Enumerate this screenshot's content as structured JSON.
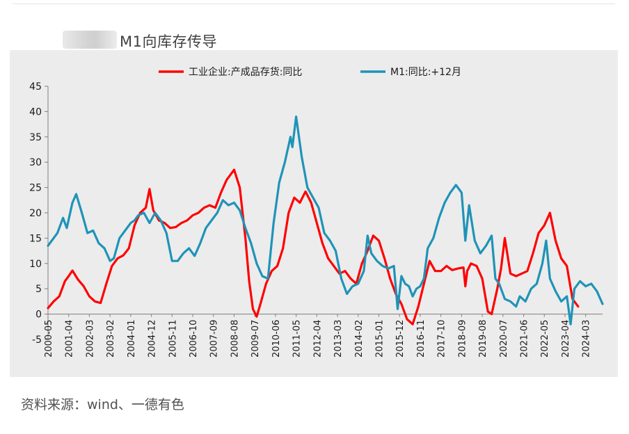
{
  "header": {
    "title": "M1向库存传导"
  },
  "footer": {
    "source": "资料来源：wind、一德有色"
  },
  "chart_data": {
    "type": "line",
    "title": "M1向库存传导",
    "ylim": [
      -5,
      45
    ],
    "yticks": [
      -5,
      0,
      5,
      10,
      15,
      20,
      25,
      30,
      35,
      40,
      45
    ],
    "x_tick_labels": [
      "2000-05",
      "2001-04",
      "2002-03",
      "2003-02",
      "2004-01",
      "2004-12",
      "2005-11",
      "2006-10",
      "2007-09",
      "2008-08",
      "2009-07",
      "2010-06",
      "2011-05",
      "2012-04",
      "2013-03",
      "2014-02",
      "2015-01",
      "2015-12",
      "2016-11",
      "2017-10",
      "2018-09",
      "2019-08",
      "2020-07",
      "2021-06",
      "2022-05",
      "2023-04",
      "2024-03"
    ],
    "legend_position": "top-center",
    "series": [
      {
        "name": "工业企业:产成品存货:同比",
        "color": "#ff0000",
        "points": [
          [
            "2000-05",
            1.2
          ],
          [
            "2000-08",
            2.5
          ],
          [
            "2000-11",
            3.5
          ],
          [
            "2001-02",
            6.5
          ],
          [
            "2001-04",
            7.5
          ],
          [
            "2001-06",
            8.6
          ],
          [
            "2001-09",
            6.8
          ],
          [
            "2001-12",
            5.5
          ],
          [
            "2002-03",
            3.5
          ],
          [
            "2002-06",
            2.5
          ],
          [
            "2002-09",
            2.2
          ],
          [
            "2002-12",
            6
          ],
          [
            "2003-03",
            9.5
          ],
          [
            "2003-06",
            11
          ],
          [
            "2003-09",
            11.6
          ],
          [
            "2003-12",
            13
          ],
          [
            "2004-03",
            17.5
          ],
          [
            "2004-06",
            20
          ],
          [
            "2004-09",
            21
          ],
          [
            "2004-11",
            24.7
          ],
          [
            "2005-01",
            20.5
          ],
          [
            "2005-04",
            18.5
          ],
          [
            "2005-07",
            18
          ],
          [
            "2005-10",
            17
          ],
          [
            "2006-01",
            17.2
          ],
          [
            "2006-04",
            18
          ],
          [
            "2006-07",
            18.5
          ],
          [
            "2006-10",
            19.5
          ],
          [
            "2007-01",
            20
          ],
          [
            "2007-04",
            21
          ],
          [
            "2007-07",
            21.5
          ],
          [
            "2007-10",
            21
          ],
          [
            "2008-01",
            24
          ],
          [
            "2008-04",
            26.5
          ],
          [
            "2008-08",
            28.5
          ],
          [
            "2008-11",
            25
          ],
          [
            "2009-02",
            15
          ],
          [
            "2009-04",
            6.5
          ],
          [
            "2009-06",
            1
          ],
          [
            "2009-08",
            -0.5
          ],
          [
            "2009-10",
            2
          ],
          [
            "2010-01",
            6
          ],
          [
            "2010-04",
            8.5
          ],
          [
            "2010-07",
            9.5
          ],
          [
            "2010-10",
            13
          ],
          [
            "2011-01",
            20
          ],
          [
            "2011-04",
            23
          ],
          [
            "2011-07",
            22
          ],
          [
            "2011-10",
            24.2
          ],
          [
            "2012-01",
            22
          ],
          [
            "2012-04",
            18
          ],
          [
            "2012-07",
            14
          ],
          [
            "2012-10",
            11
          ],
          [
            "2013-01",
            9.5
          ],
          [
            "2013-04",
            8
          ],
          [
            "2013-07",
            8.5
          ],
          [
            "2013-10",
            7
          ],
          [
            "2014-01",
            6
          ],
          [
            "2014-04",
            10
          ],
          [
            "2014-07",
            12.5
          ],
          [
            "2014-10",
            15.5
          ],
          [
            "2015-01",
            14.5
          ],
          [
            "2015-04",
            11
          ],
          [
            "2015-07",
            7
          ],
          [
            "2015-10",
            4
          ],
          [
            "2016-01",
            2
          ],
          [
            "2016-04",
            -1
          ],
          [
            "2016-07",
            -2
          ],
          [
            "2016-10",
            1.5
          ],
          [
            "2017-01",
            6
          ],
          [
            "2017-04",
            10.5
          ],
          [
            "2017-07",
            8.5
          ],
          [
            "2017-10",
            8.5
          ],
          [
            "2018-01",
            9.5
          ],
          [
            "2018-04",
            8.7
          ],
          [
            "2018-07",
            9
          ],
          [
            "2018-10",
            9.2
          ],
          [
            "2018-11",
            5.5
          ],
          [
            "2018-12",
            8.5
          ],
          [
            "2019-02",
            10
          ],
          [
            "2019-05",
            9.5
          ],
          [
            "2019-08",
            7
          ],
          [
            "2019-11",
            0.5
          ],
          [
            "2020-01",
            0
          ],
          [
            "2020-04",
            5
          ],
          [
            "2020-06",
            9
          ],
          [
            "2020-08",
            15
          ],
          [
            "2020-11",
            8
          ],
          [
            "2021-02",
            7.5
          ],
          [
            "2021-05",
            8
          ],
          [
            "2021-08",
            8.5
          ],
          [
            "2021-11",
            12
          ],
          [
            "2022-02",
            16
          ],
          [
            "2022-05",
            17.5
          ],
          [
            "2022-08",
            20
          ],
          [
            "2022-11",
            14.5
          ],
          [
            "2023-02",
            11
          ],
          [
            "2023-05",
            9.5
          ],
          [
            "2023-08",
            3
          ],
          [
            "2023-11",
            1.5
          ]
        ]
      },
      {
        "name": "M1:同比:+12月",
        "color": "#1f93b8",
        "points": [
          [
            "2000-05",
            13.5
          ],
          [
            "2000-07",
            14.5
          ],
          [
            "2000-10",
            16
          ],
          [
            "2001-01",
            19
          ],
          [
            "2001-03",
            17
          ],
          [
            "2001-06",
            22
          ],
          [
            "2001-08",
            23.7
          ],
          [
            "2001-11",
            20
          ],
          [
            "2002-02",
            16
          ],
          [
            "2002-05",
            16.5
          ],
          [
            "2002-08",
            14
          ],
          [
            "2002-11",
            13
          ],
          [
            "2003-02",
            10.5
          ],
          [
            "2003-04",
            11
          ],
          [
            "2003-07",
            15
          ],
          [
            "2003-10",
            16.5
          ],
          [
            "2004-01",
            18
          ],
          [
            "2004-03",
            18.5
          ],
          [
            "2004-05",
            19.5
          ],
          [
            "2004-08",
            20
          ],
          [
            "2004-11",
            18
          ],
          [
            "2005-02",
            20
          ],
          [
            "2005-05",
            18.5
          ],
          [
            "2005-08",
            16
          ],
          [
            "2005-11",
            10.5
          ],
          [
            "2006-02",
            10.5
          ],
          [
            "2006-05",
            12
          ],
          [
            "2006-08",
            13
          ],
          [
            "2006-11",
            11.5
          ],
          [
            "2007-02",
            14
          ],
          [
            "2007-05",
            17
          ],
          [
            "2007-08",
            18.5
          ],
          [
            "2007-11",
            20
          ],
          [
            "2008-02",
            22.5
          ],
          [
            "2008-05",
            21.5
          ],
          [
            "2008-08",
            22
          ],
          [
            "2008-11",
            20.5
          ],
          [
            "2009-02",
            17
          ],
          [
            "2009-05",
            14
          ],
          [
            "2009-08",
            10
          ],
          [
            "2009-11",
            7.5
          ],
          [
            "2010-02",
            7
          ],
          [
            "2010-05",
            18
          ],
          [
            "2010-08",
            26
          ],
          [
            "2010-11",
            30
          ],
          [
            "2011-02",
            35
          ],
          [
            "2011-03",
            33
          ],
          [
            "2011-05",
            39
          ],
          [
            "2011-08",
            31
          ],
          [
            "2011-11",
            25
          ],
          [
            "2012-02",
            23
          ],
          [
            "2012-05",
            21
          ],
          [
            "2012-08",
            16
          ],
          [
            "2012-11",
            14.5
          ],
          [
            "2013-02",
            12.5
          ],
          [
            "2013-05",
            7
          ],
          [
            "2013-08",
            4
          ],
          [
            "2013-11",
            5.5
          ],
          [
            "2014-02",
            6
          ],
          [
            "2014-05",
            8.5
          ],
          [
            "2014-07",
            15.5
          ],
          [
            "2014-09",
            12
          ],
          [
            "2014-12",
            10.5
          ],
          [
            "2015-03",
            9.5
          ],
          [
            "2015-06",
            9
          ],
          [
            "2015-09",
            9.5
          ],
          [
            "2015-11",
            1
          ],
          [
            "2016-01",
            7.5
          ],
          [
            "2016-03",
            6
          ],
          [
            "2016-05",
            5.5
          ],
          [
            "2016-07",
            3.5
          ],
          [
            "2016-09",
            5
          ],
          [
            "2016-11",
            5.5
          ],
          [
            "2017-01",
            7
          ],
          [
            "2017-03",
            13
          ],
          [
            "2017-06",
            15
          ],
          [
            "2017-09",
            19
          ],
          [
            "2017-12",
            22
          ],
          [
            "2018-03",
            24
          ],
          [
            "2018-06",
            25.5
          ],
          [
            "2018-09",
            24
          ],
          [
            "2018-11",
            14.5
          ],
          [
            "2019-01",
            21.5
          ],
          [
            "2019-04",
            14.5
          ],
          [
            "2019-07",
            12
          ],
          [
            "2019-10",
            13.5
          ],
          [
            "2020-01",
            15.5
          ],
          [
            "2020-03",
            7
          ],
          [
            "2020-05",
            6
          ],
          [
            "2020-08",
            3
          ],
          [
            "2020-11",
            2.5
          ],
          [
            "2021-02",
            1.5
          ],
          [
            "2021-04",
            3.5
          ],
          [
            "2021-07",
            2.5
          ],
          [
            "2021-10",
            5
          ],
          [
            "2022-01",
            6
          ],
          [
            "2022-04",
            10
          ],
          [
            "2022-06",
            14.5
          ],
          [
            "2022-08",
            7
          ],
          [
            "2022-11",
            4.5
          ],
          [
            "2023-02",
            2.5
          ],
          [
            "2023-05",
            3.5
          ],
          [
            "2023-07",
            -2
          ],
          [
            "2023-09",
            5
          ],
          [
            "2023-12",
            6.5
          ],
          [
            "2024-03",
            5.5
          ],
          [
            "2024-06",
            6
          ],
          [
            "2024-09",
            4.5
          ],
          [
            "2024-12",
            2
          ]
        ]
      }
    ]
  }
}
